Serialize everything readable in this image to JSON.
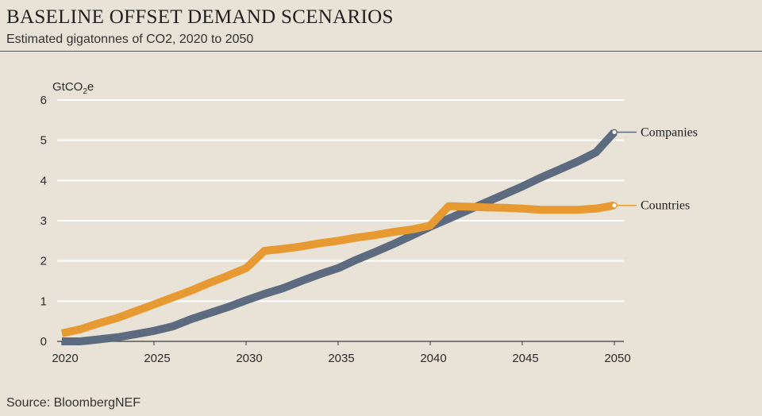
{
  "header": {
    "title": "BASELINE OFFSET DEMAND SCENARIOS",
    "subtitle": "Estimated gigatonnes of CO2, 2020 to 2050"
  },
  "footer": {
    "source": "Source: BloombergNEF"
  },
  "colors": {
    "companies": "#5d6b80",
    "countries": "#e89a32",
    "grid": "#ffffff",
    "background": "#e8e3d6"
  },
  "chart_data": {
    "type": "line",
    "title": "BASELINE OFFSET DEMAND SCENARIOS",
    "subtitle": "Estimated gigatonnes of CO2, 2020 to 2050",
    "ylabel": "GtCO2e",
    "ylabel_parts": {
      "base": "GtCO",
      "sub": "2",
      "suffix": "e"
    },
    "xlabel": "",
    "xlim": [
      2020,
      2050
    ],
    "ylim": [
      0,
      6
    ],
    "xticks": [
      2020,
      2025,
      2030,
      2035,
      2040,
      2045,
      2050
    ],
    "yticks": [
      0,
      1,
      2,
      3,
      4,
      5,
      6
    ],
    "grid": true,
    "x": [
      2020,
      2021,
      2022,
      2023,
      2024,
      2025,
      2026,
      2027,
      2028,
      2029,
      2030,
      2031,
      2032,
      2033,
      2034,
      2035,
      2036,
      2037,
      2038,
      2039,
      2040,
      2041,
      2042,
      2043,
      2044,
      2045,
      2046,
      2047,
      2048,
      2049,
      2050
    ],
    "series": [
      {
        "name": "Companies",
        "key": "companies",
        "values": [
          0.0,
          0.0,
          0.05,
          0.1,
          0.18,
          0.26,
          0.37,
          0.55,
          0.7,
          0.85,
          1.02,
          1.18,
          1.32,
          1.5,
          1.67,
          1.82,
          2.03,
          2.22,
          2.42,
          2.63,
          2.85,
          3.05,
          3.25,
          3.45,
          3.65,
          3.85,
          4.07,
          4.27,
          4.47,
          4.7,
          5.2
        ]
      },
      {
        "name": "Countries",
        "key": "countries",
        "values": [
          0.2,
          0.3,
          0.45,
          0.58,
          0.75,
          0.92,
          1.09,
          1.26,
          1.45,
          1.63,
          1.82,
          2.25,
          2.3,
          2.36,
          2.44,
          2.5,
          2.58,
          2.64,
          2.72,
          2.78,
          2.88,
          3.36,
          3.35,
          3.33,
          3.32,
          3.3,
          3.27,
          3.27,
          3.27,
          3.3,
          3.38
        ]
      }
    ]
  }
}
